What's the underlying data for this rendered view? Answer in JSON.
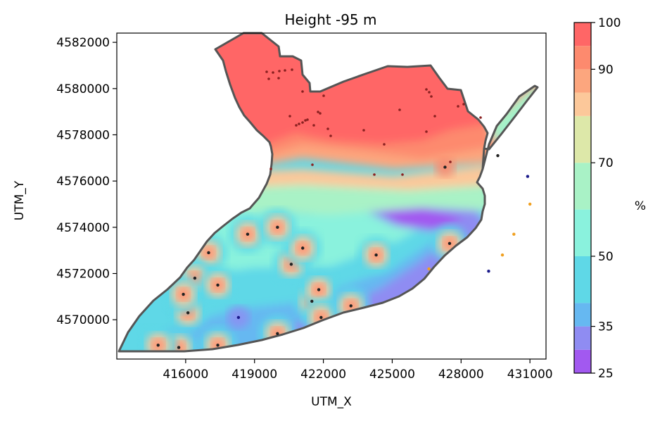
{
  "chart_data": {
    "type": "heatmap",
    "title": "Height -95 m",
    "xlabel": "UTM_X",
    "ylabel": "UTM_Y",
    "xlim": [
      413000,
      431700
    ],
    "ylim": [
      4568300,
      4582400
    ],
    "xticks": [
      416000,
      419000,
      422000,
      425000,
      428000,
      431000
    ],
    "yticks": [
      4570000,
      4572000,
      4574000,
      4576000,
      4578000,
      4580000,
      4582000
    ],
    "colorbar": {
      "label": "%",
      "range": [
        25,
        100
      ],
      "ticks": [
        25,
        35,
        50,
        70,
        90,
        100
      ],
      "levels": [
        {
          "from": 25,
          "to": 30,
          "color": "#a259f0"
        },
        {
          "from": 30,
          "to": 35,
          "color": "#8f8cf2"
        },
        {
          "from": 35,
          "to": 40,
          "color": "#66b8f1"
        },
        {
          "from": 40,
          "to": 50,
          "color": "#5fd8e7"
        },
        {
          "from": 50,
          "to": 60,
          "color": "#8af2dd"
        },
        {
          "from": 60,
          "to": 70,
          "color": "#a9f2c6"
        },
        {
          "from": 70,
          "to": 80,
          "color": "#dde8a9"
        },
        {
          "from": 80,
          "to": 85,
          "color": "#fcc89a"
        },
        {
          "from": 85,
          "to": 90,
          "color": "#fca67e"
        },
        {
          "from": 90,
          "to": 95,
          "color": "#fd8a6e"
        },
        {
          "from": 95,
          "to": 100,
          "color": "#ff6666"
        }
      ]
    },
    "wells": [
      {
        "x": 416100,
        "y": 4570300,
        "value": 90
      },
      {
        "x": 417400,
        "y": 4568900,
        "value": 92
      },
      {
        "x": 415700,
        "y": 4568800,
        "value": 92
      },
      {
        "x": 418300,
        "y": 4570100,
        "value": 30
      },
      {
        "x": 420000,
        "y": 4569400,
        "value": 92
      },
      {
        "x": 421500,
        "y": 4570800,
        "value": 92
      },
      {
        "x": 421800,
        "y": 4571300,
        "value": 92
      },
      {
        "x": 421900,
        "y": 4570100,
        "value": 92
      },
      {
        "x": 423200,
        "y": 4570600,
        "value": 92
      },
      {
        "x": 424300,
        "y": 4572800,
        "value": 92
      },
      {
        "x": 420600,
        "y": 4572400,
        "value": 92
      },
      {
        "x": 421100,
        "y": 4573100,
        "value": 92
      },
      {
        "x": 417000,
        "y": 4572900,
        "value": 92
      },
      {
        "x": 416400,
        "y": 4571800,
        "value": 92
      },
      {
        "x": 417400,
        "y": 4571500,
        "value": 92
      },
      {
        "x": 415900,
        "y": 4571100,
        "value": 92
      },
      {
        "x": 427500,
        "y": 4573300,
        "value": 92
      },
      {
        "x": 426600,
        "y": 4572200,
        "value": 70
      },
      {
        "x": 427300,
        "y": 4576600,
        "value": 100
      },
      {
        "x": 418700,
        "y": 4573700,
        "value": 100
      },
      {
        "x": 420000,
        "y": 4574000,
        "value": 100
      },
      {
        "x": 414800,
        "y": 4568900,
        "value": 92
      },
      {
        "x": 429200,
        "y": 4572100,
        "value": 30
      },
      {
        "x": 429800,
        "y": 4572800,
        "value": 80
      },
      {
        "x": 430300,
        "y": 4573700,
        "value": 80
      },
      {
        "x": 430900,
        "y": 4576200,
        "value": 30
      },
      {
        "x": 431000,
        "y": 4575000,
        "value": 80
      },
      {
        "x": 429600,
        "y": 4577100,
        "value": 95
      }
    ]
  }
}
